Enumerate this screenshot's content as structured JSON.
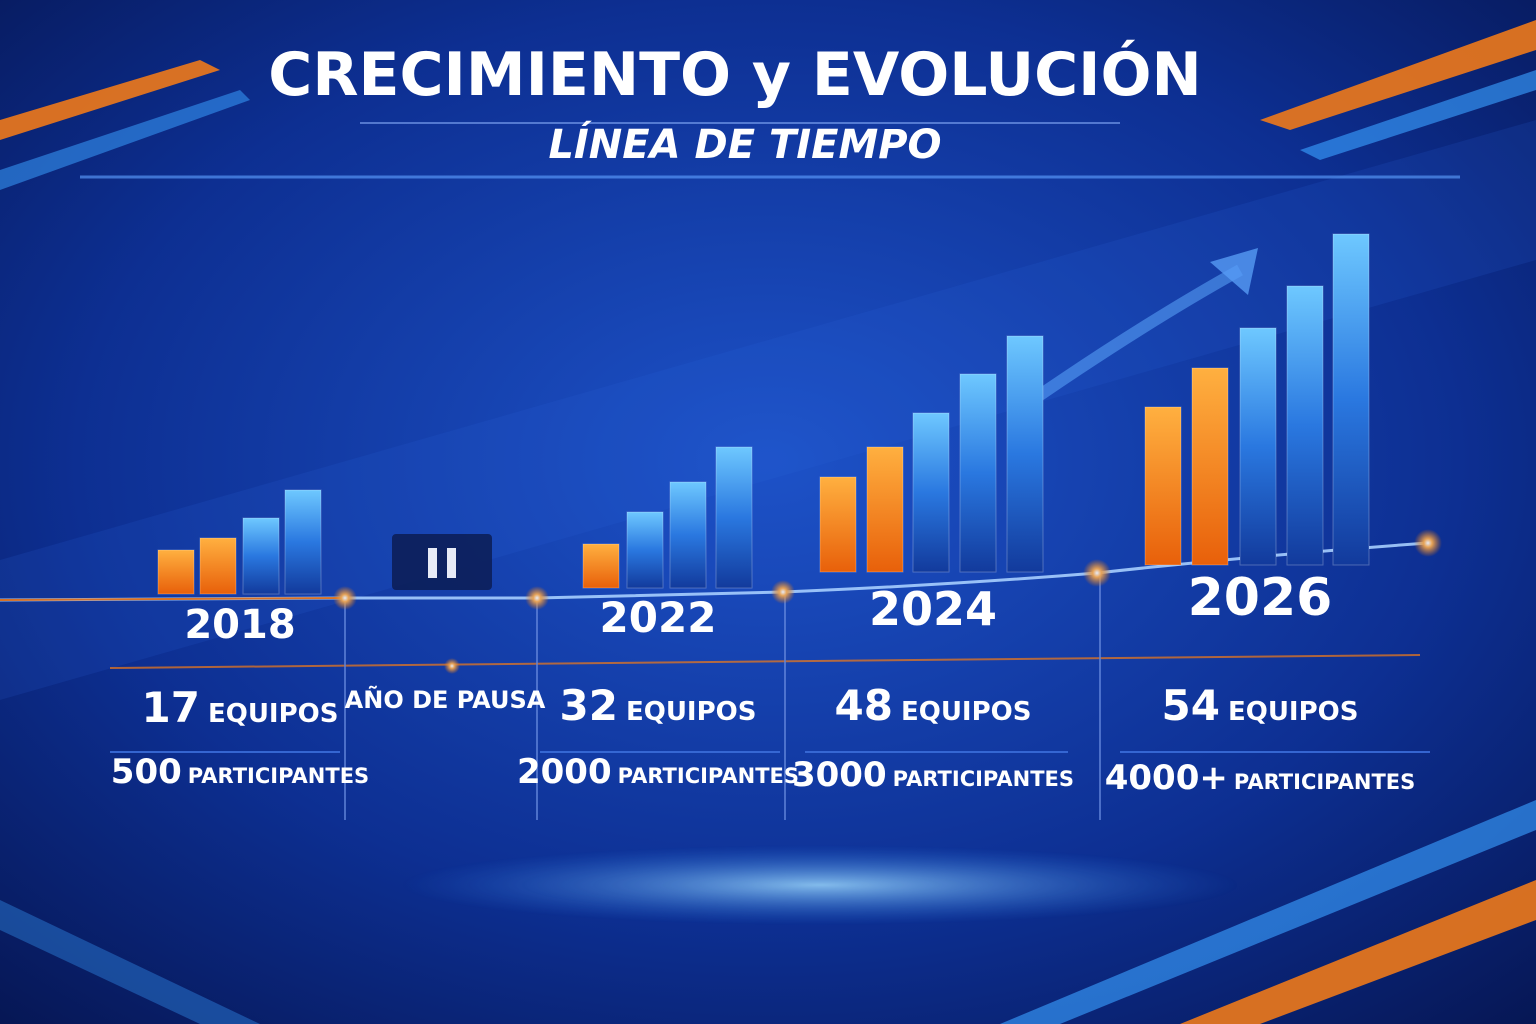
{
  "header": {
    "title": "CRECIMIENTO y EVOLUCIÓN",
    "subtitle": "LÍNEA DE TIEMPO"
  },
  "timeline": [
    {
      "year": "2018",
      "teams_value": "17",
      "teams_label": "EQUIPOS",
      "participants_value": "500",
      "participants_label": "PARTICIPANTES"
    },
    {
      "label": "AÑO DE PAUSA"
    },
    {
      "year": "2022",
      "teams_value": "32",
      "teams_label": "EQUIPOS",
      "participants_value": "2000",
      "participants_label": "PARTICIPANTES"
    },
    {
      "year": "2024",
      "teams_value": "48",
      "teams_label": "EQUIPOS",
      "participants_value": "3000",
      "participants_label": "PARTICIPANTES"
    },
    {
      "year": "2026",
      "teams_value": "54",
      "teams_label": "EQUIPOS",
      "participants_value": "4000+",
      "participants_label": "PARTICIPANTES"
    }
  ]
}
